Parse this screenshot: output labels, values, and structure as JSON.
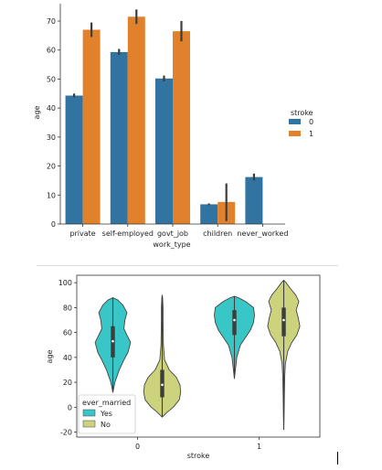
{
  "chart_data": [
    {
      "type": "bar",
      "xlabel": "work_type",
      "ylabel": "age",
      "categories": [
        "private",
        "self-employed",
        "govt_job",
        "children",
        "never_worked"
      ],
      "ylim": [
        0,
        76
      ],
      "yticks": [
        0,
        10,
        20,
        30,
        40,
        50,
        60,
        70
      ],
      "legend": {
        "title": "stroke",
        "position": "right"
      },
      "series": [
        {
          "name": "0",
          "color": "#3274a1",
          "values": [
            44.3,
            59.3,
            50.2,
            6.8,
            16.2
          ],
          "ci": [
            [
              43.7,
              45.0
            ],
            [
              58.3,
              60.4
            ],
            [
              49.2,
              51.2
            ],
            [
              6.5,
              7.1
            ],
            [
              15.0,
              17.4
            ]
          ]
        },
        {
          "name": "1",
          "color": "#e1812c",
          "values": [
            67.0,
            71.5,
            66.5,
            7.6,
            null
          ],
          "ci": [
            [
              64.5,
              69.5
            ],
            [
              69.0,
              74.0
            ],
            [
              63.0,
              70.0
            ],
            [
              1.0,
              14.0
            ],
            null
          ]
        }
      ]
    },
    {
      "type": "violin",
      "xlabel": "stroke",
      "ylabel": "age",
      "categories": [
        "0",
        "1"
      ],
      "ylim": [
        -24,
        106
      ],
      "yticks": [
        -20,
        0,
        20,
        40,
        60,
        80,
        100
      ],
      "legend": {
        "title": "ever_married",
        "position": "bottom-left"
      },
      "series": [
        {
          "name": "Yes",
          "color": "#39c6c6",
          "groups": [
            {
              "min": 12,
              "max": 88,
              "q1": 40,
              "median": 53,
              "q3": 65,
              "profile": [
                [
                  12,
                  0
                ],
                [
                  20,
                  0.1
                ],
                [
                  30,
                  0.32
                ],
                [
                  38,
                  0.55
                ],
                [
                  44,
                  0.75
                ],
                [
                  52,
                  0.88
                ],
                [
                  58,
                  0.7
                ],
                [
                  63,
                  0.55
                ],
                [
                  70,
                  0.6
                ],
                [
                  76,
                  0.7
                ],
                [
                  82,
                  0.5
                ],
                [
                  86,
                  0.25
                ],
                [
                  88,
                  0
                ]
              ]
            },
            {
              "min": 23,
              "max": 89,
              "q1": 58,
              "median": 70,
              "q3": 78,
              "profile": [
                [
                  23,
                  0
                ],
                [
                  30,
                  0.05
                ],
                [
                  40,
                  0.12
                ],
                [
                  50,
                  0.3
                ],
                [
                  56,
                  0.55
                ],
                [
                  62,
                  0.8
                ],
                [
                  68,
                  0.95
                ],
                [
                  74,
                  1.0
                ],
                [
                  80,
                  0.95
                ],
                [
                  85,
                  0.55
                ],
                [
                  88,
                  0.2
                ],
                [
                  89,
                  0
                ]
              ]
            }
          ]
        },
        {
          "name": "No",
          "color": "#cdd27c",
          "groups": [
            {
              "min": -8,
              "max": 90,
              "q1": 8,
              "median": 18,
              "q3": 30,
              "profile": [
                [
                  -8,
                  0
                ],
                [
                  -4,
                  0.25
                ],
                [
                  0,
                  0.55
                ],
                [
                  6,
                  0.85
                ],
                [
                  12,
                  0.92
                ],
                [
                  18,
                  0.88
                ],
                [
                  24,
                  0.7
                ],
                [
                  30,
                  0.35
                ],
                [
                  38,
                  0.12
                ],
                [
                  50,
                  0.06
                ],
                [
                  60,
                  0.05
                ],
                [
                  70,
                  0.04
                ],
                [
                  80,
                  0.04
                ],
                [
                  88,
                  0.02
                ],
                [
                  90,
                  0
                ]
              ]
            },
            {
              "min": -18,
              "max": 102,
              "q1": 57,
              "median": 70,
              "q3": 80,
              "profile": [
                [
                  -18,
                  0
                ],
                [
                  -5,
                  0.02
                ],
                [
                  10,
                  0.03
                ],
                [
                  25,
                  0.05
                ],
                [
                  35,
                  0.08
                ],
                [
                  45,
                  0.2
                ],
                [
                  52,
                  0.4
                ],
                [
                  58,
                  0.65
                ],
                [
                  65,
                  0.8
                ],
                [
                  72,
                  0.72
                ],
                [
                  78,
                  0.62
                ],
                [
                  85,
                  0.75
                ],
                [
                  90,
                  0.6
                ],
                [
                  96,
                  0.3
                ],
                [
                  100,
                  0.12
                ],
                [
                  102,
                  0
                ]
              ]
            }
          ]
        }
      ]
    }
  ]
}
